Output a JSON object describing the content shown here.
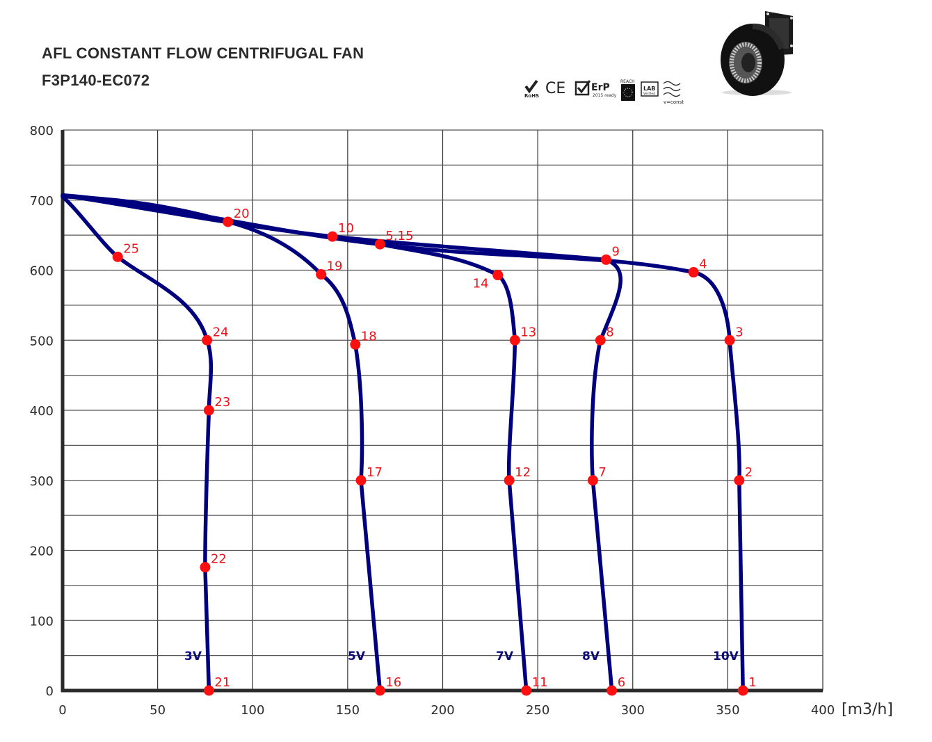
{
  "header": {
    "title": "AFL CONSTANT FLOW CENTRIFUGAL FAN",
    "model": "F3P140-EC072"
  },
  "certifications": [
    {
      "name": "rohs-icon",
      "label": "RoHS"
    },
    {
      "name": "ce-icon",
      "label": "CE"
    },
    {
      "name": "erp-icon",
      "label": "ErP",
      "sublabel": "2015 ready"
    },
    {
      "name": "reach-icon",
      "label": "REACH"
    },
    {
      "name": "lab-verified-icon",
      "label": "LAB",
      "sublabel": "Verified"
    },
    {
      "name": "constant-flow-icon",
      "label": "v=const"
    }
  ],
  "colors": {
    "curve": "#00007f",
    "point": "#ff1010",
    "point_label": "#e8141b",
    "grid": "#333333",
    "axis": "#2b2b2b"
  },
  "chart_data": {
    "type": "line",
    "title": "AFL CONSTANT FLOW CENTRIFUGAL FAN F3P140-EC072",
    "xlabel": "[m3/h]",
    "ylabel": "",
    "xlim": [
      0,
      400
    ],
    "ylim": [
      0,
      800
    ],
    "x_ticks": [
      0,
      50,
      100,
      150,
      200,
      250,
      300,
      350,
      400
    ],
    "y_ticks": [
      0,
      100,
      200,
      300,
      400,
      500,
      600,
      700,
      800
    ],
    "grid": true,
    "x_minor_step": 50,
    "y_minor_step": 50,
    "series": [
      {
        "name": "10V",
        "points": [
          {
            "id": "1",
            "x": 358,
            "y": 0
          },
          {
            "id": "2",
            "x": 356,
            "y": 300
          },
          {
            "id": "3",
            "x": 351,
            "y": 500
          },
          {
            "id": "4",
            "x": 332,
            "y": 597
          },
          {
            "id": "5",
            "x": 167,
            "y": 637
          }
        ]
      },
      {
        "name": "8V",
        "points": [
          {
            "id": "6",
            "x": 289,
            "y": 0
          },
          {
            "id": "7",
            "x": 279,
            "y": 300
          },
          {
            "id": "8",
            "x": 283,
            "y": 500
          },
          {
            "id": "9",
            "x": 286,
            "y": 615
          },
          {
            "id": "10",
            "x": 142,
            "y": 648
          }
        ]
      },
      {
        "name": "7V",
        "points": [
          {
            "id": "11",
            "x": 244,
            "y": 0
          },
          {
            "id": "12",
            "x": 235,
            "y": 300
          },
          {
            "id": "13",
            "x": 238,
            "y": 500
          },
          {
            "id": "14",
            "x": 229,
            "y": 593
          },
          {
            "id": "15",
            "x": 167,
            "y": 637
          }
        ]
      },
      {
        "name": "5V",
        "points": [
          {
            "id": "16",
            "x": 167,
            "y": 0
          },
          {
            "id": "17",
            "x": 157,
            "y": 300
          },
          {
            "id": "18",
            "x": 154,
            "y": 494
          },
          {
            "id": "19",
            "x": 136,
            "y": 594
          },
          {
            "id": "20",
            "x": 87,
            "y": 669
          }
        ]
      },
      {
        "name": "3V",
        "points": [
          {
            "id": "21",
            "x": 77,
            "y": 0
          },
          {
            "id": "22",
            "x": 75,
            "y": 176
          },
          {
            "id": "23",
            "x": 77,
            "y": 400
          },
          {
            "id": "24",
            "x": 76,
            "y": 500
          },
          {
            "id": "25",
            "x": 29,
            "y": 619
          }
        ]
      }
    ],
    "point_labels": [
      {
        "text": "1",
        "x": 358,
        "y": 0
      },
      {
        "text": "2",
        "x": 356,
        "y": 300
      },
      {
        "text": "3",
        "x": 351,
        "y": 500
      },
      {
        "text": "4",
        "x": 332,
        "y": 597
      },
      {
        "text": "5,15",
        "x": 167,
        "y": 637
      },
      {
        "text": "6",
        "x": 289,
        "y": 0
      },
      {
        "text": "7",
        "x": 279,
        "y": 300
      },
      {
        "text": "8",
        "x": 283,
        "y": 500
      },
      {
        "text": "9",
        "x": 286,
        "y": 615
      },
      {
        "text": "10",
        "x": 142,
        "y": 648
      },
      {
        "text": "11",
        "x": 244,
        "y": 0
      },
      {
        "text": "12",
        "x": 235,
        "y": 300
      },
      {
        "text": "13",
        "x": 238,
        "y": 500
      },
      {
        "text": "14",
        "x": 229,
        "y": 593
      },
      {
        "text": "16",
        "x": 167,
        "y": 0
      },
      {
        "text": "17",
        "x": 157,
        "y": 300
      },
      {
        "text": "18",
        "x": 154,
        "y": 494
      },
      {
        "text": "19",
        "x": 136,
        "y": 594
      },
      {
        "text": "20",
        "x": 87,
        "y": 669
      },
      {
        "text": "21",
        "x": 77,
        "y": 0
      },
      {
        "text": "22",
        "x": 75,
        "y": 176
      },
      {
        "text": "23",
        "x": 77,
        "y": 400
      },
      {
        "text": "24",
        "x": 76,
        "y": 500
      },
      {
        "text": "25",
        "x": 29,
        "y": 619
      }
    ],
    "curve_labels": [
      "3V",
      "5V",
      "7V",
      "8V",
      "10V"
    ]
  }
}
